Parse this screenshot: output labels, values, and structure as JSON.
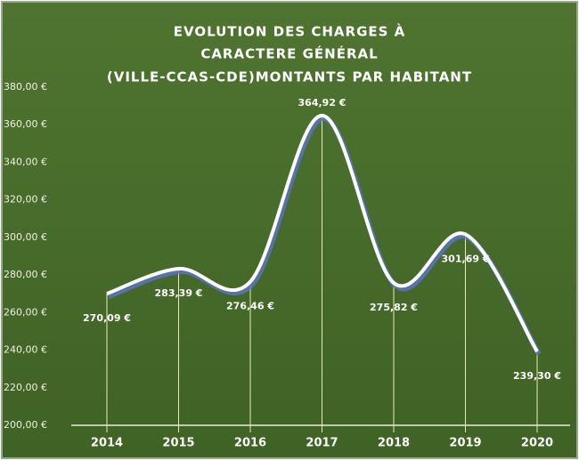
{
  "chart_data": {
    "type": "line",
    "title": [
      "EVOLUTION DES CHARGES À",
      "CARACTERE GÉNÉRAL",
      "(VILLE-CCAS-CDE)MONTANTS  PAR HABITANT"
    ],
    "categories": [
      "2014",
      "2015",
      "2016",
      "2017",
      "2018",
      "2019",
      "2020"
    ],
    "values": [
      270.09,
      283.39,
      276.46,
      364.92,
      275.82,
      301.69,
      239.3
    ],
    "value_labels": [
      "270,09 €",
      "283,39 €",
      "276,46 €",
      "364,92 €",
      "275,82 €",
      "301,69 €",
      "239,30 €"
    ],
    "color": "#ffffff",
    "ylim": [
      200,
      380
    ],
    "yticks": [
      {
        "value": 200,
        "label": "200,00 €"
      },
      {
        "value": 220,
        "label": "220,00 €"
      },
      {
        "value": 240,
        "label": "240,00 €"
      },
      {
        "value": 260,
        "label": "260,00 €"
      },
      {
        "value": 280,
        "label": "280,00 €"
      },
      {
        "value": 300,
        "label": "300,00 €"
      },
      {
        "value": 320,
        "label": "320,00 €"
      },
      {
        "value": 340,
        "label": "340,00 €"
      },
      {
        "value": 360,
        "label": "360,00 €"
      },
      {
        "value": 380,
        "label": "380,00 €"
      }
    ],
    "grid": false
  }
}
